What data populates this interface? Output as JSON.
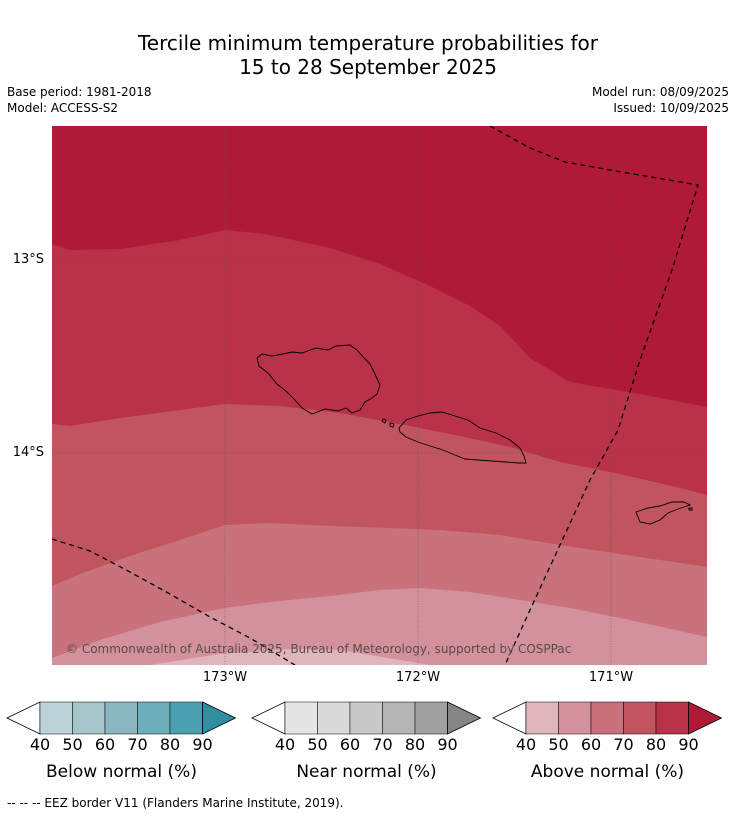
{
  "header": {
    "title_line1": "Tercile minimum temperature probabilities for",
    "title_line2": "15 to 28 September 2025",
    "base_period": "Base period: 1981-2018",
    "model": "Model: ACCESS-S2",
    "model_run": "Model run: 08/09/2025",
    "issued": "Issued: 10/09/2025"
  },
  "map": {
    "lat_labels": [
      "13°S",
      "14°S"
    ],
    "lon_labels": [
      "173°W",
      "172°W",
      "171°W"
    ],
    "credit": "© Commonwealth of Australia 2025, Bureau of Meteorology, supported by COSPPac"
  },
  "legend": {
    "ticks": [
      "40",
      "50",
      "60",
      "70",
      "80",
      "90"
    ],
    "below": {
      "label": "Below normal (%)",
      "colors": [
        "#bdd3da",
        "#a5c5cb",
        "#89b6c1",
        "#6eaebb",
        "#4a9fb0",
        "#2f8ea0"
      ]
    },
    "near": {
      "label": "Near normal (%)",
      "colors": [
        "#e5e5e5",
        "#d9d9d9",
        "#c8c8c8",
        "#b5b5b5",
        "#a0a0a0",
        "#858585"
      ]
    },
    "above": {
      "label": "Above normal (%)",
      "colors": [
        "#e0b6bc",
        "#d3929b",
        "#c9717c",
        "#c05560",
        "#b93249",
        "#b01a39"
      ]
    }
  },
  "footer": "--  --  -- EEZ border V11 (Flanders Marine Institute, 2019)."
}
